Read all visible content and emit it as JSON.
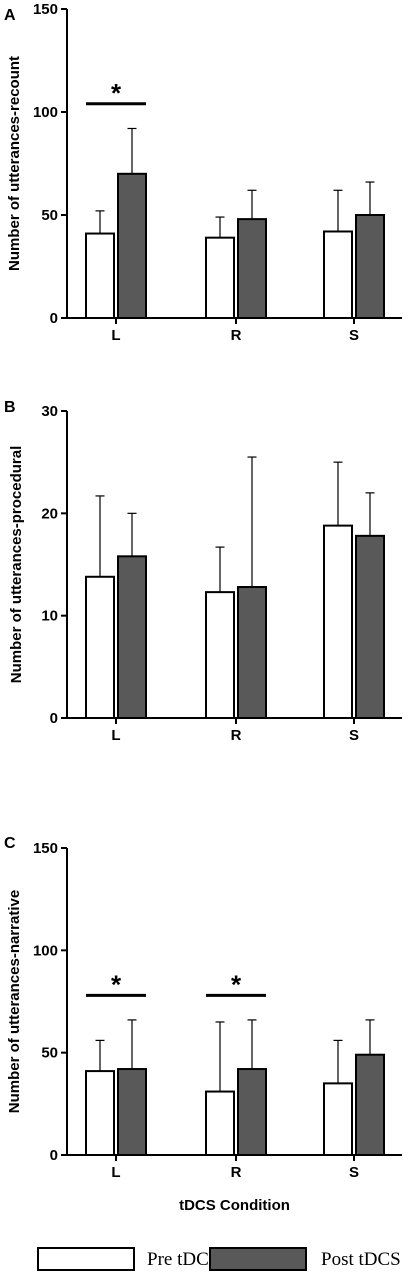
{
  "chart_data": [
    {
      "panel": "A",
      "type": "bar",
      "ylabel": "Number of utterances-recount",
      "ylim": [
        0,
        150
      ],
      "yticks": [
        0,
        50,
        100,
        150
      ],
      "categories": [
        "L",
        "R",
        "S"
      ],
      "series": [
        {
          "name": "Pre tDCS",
          "values": [
            41,
            39,
            42
          ],
          "errors": [
            11,
            10,
            20
          ]
        },
        {
          "name": "Post tDCS",
          "values": [
            70,
            48,
            50
          ],
          "errors": [
            22,
            14,
            16
          ]
        }
      ],
      "significance": [
        {
          "category": "L",
          "label": "*"
        }
      ]
    },
    {
      "panel": "B",
      "type": "bar",
      "ylabel": "Number of utterances-procedural",
      "ylim": [
        0,
        30
      ],
      "yticks": [
        0,
        10,
        20,
        30
      ],
      "categories": [
        "L",
        "R",
        "S"
      ],
      "series": [
        {
          "name": "Pre tDCS",
          "values": [
            13.8,
            12.3,
            18.8
          ],
          "errors": [
            7.9,
            4.4,
            6.2
          ]
        },
        {
          "name": "Post tDCS",
          "values": [
            15.8,
            12.8,
            17.8
          ],
          "errors": [
            4.2,
            12.7,
            4.2
          ]
        }
      ],
      "significance": []
    },
    {
      "panel": "C",
      "type": "bar",
      "ylabel": "Number of utterances-narrative",
      "xlabel": "tDCS Condition",
      "ylim": [
        0,
        150
      ],
      "yticks": [
        0,
        50,
        100,
        150
      ],
      "categories": [
        "L",
        "R",
        "S"
      ],
      "series": [
        {
          "name": "Pre tDCS",
          "values": [
            41,
            31,
            35
          ],
          "errors": [
            15,
            34,
            21
          ]
        },
        {
          "name": "Post tDCS",
          "values": [
            42,
            42,
            49
          ],
          "errors": [
            24,
            24,
            17
          ]
        }
      ],
      "significance": [
        {
          "category": "L",
          "label": "*"
        },
        {
          "category": "R",
          "label": "*"
        }
      ]
    }
  ],
  "legend": [
    {
      "name": "Pre tDCS",
      "color": "#ffffff"
    },
    {
      "name": "Post tDCS",
      "color": "#595959"
    }
  ],
  "colors": {
    "pre": "#ffffff",
    "post": "#595959",
    "axis": "#000000"
  }
}
